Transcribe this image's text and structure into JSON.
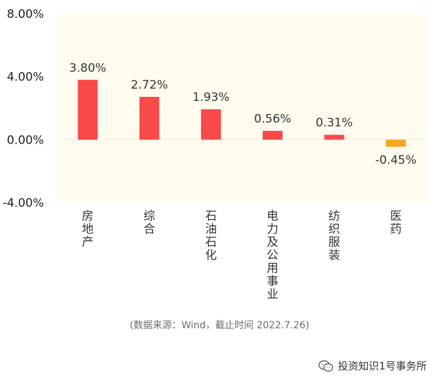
{
  "chart_data": {
    "type": "bar",
    "categories": [
      "房地产",
      "综合",
      "石油石化",
      "电力及公用事业",
      "纺织服装",
      "医药"
    ],
    "values": [
      3.8,
      2.72,
      1.93,
      0.56,
      0.31,
      -0.45
    ],
    "value_labels": [
      "3.80%",
      "2.72%",
      "1.93%",
      "0.56%",
      "0.31%",
      "-0.45%"
    ],
    "yticks": [
      "8.00%",
      "4.00%",
      "0.00%",
      "-4.00%"
    ],
    "ytick_values": [
      8,
      4,
      0,
      -4
    ],
    "ylim": [
      -4,
      8
    ],
    "colors": {
      "positive": "#f94a4a",
      "negative": "#f5a623",
      "plot_bg": "#fffbef"
    },
    "grid": false,
    "legend": "none"
  },
  "source_note": "(数据来源：Wind，截止时间 2022.7.26)",
  "watermark": {
    "icon": "wechat-icon",
    "text": "投资知识1号事务所"
  }
}
